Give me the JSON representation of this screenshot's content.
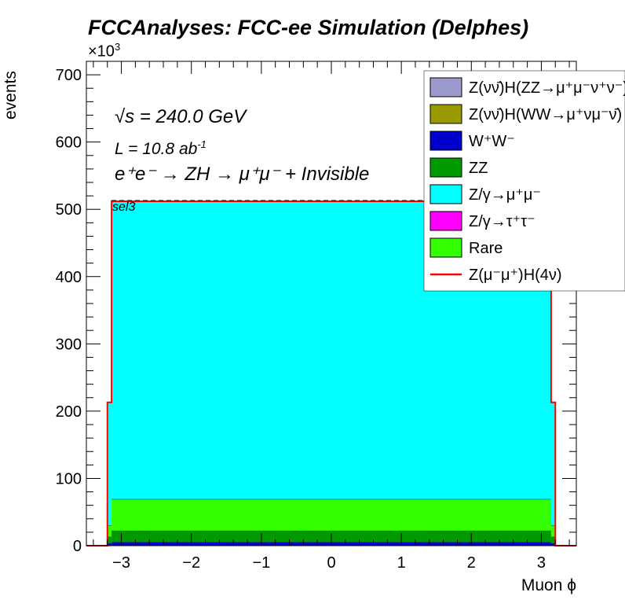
{
  "title": "FCCAnalyses: FCC-ee Simulation (Delphes)",
  "annotations": {
    "sqrt_s_symbol": "√s",
    "sqrt_s_value": "= 240.0 GeV",
    "lumi": "L = 10.8 ab",
    "lumi_exp": "-1",
    "process": "e⁺e⁻ → ZH → μ⁺μ⁻ + Invisible",
    "selection": "sel3",
    "exponent_label": "×10",
    "exponent_power": "3"
  },
  "colors": {
    "ZZ_nunu_H_mumununu": "#9999cc",
    "WW_nunu_H": "#999900",
    "WW": "#0000cc",
    "ZZ": "#009900",
    "Zgamma_mumu": "#00ffff",
    "Zgamma_tautau": "#ff00ff",
    "Rare": "#33ff00",
    "signal_line": "#ff0000"
  },
  "chart_data": {
    "type": "bar",
    "title": "FCCAnalyses: FCC-ee Simulation (Delphes)",
    "xlabel": "Muon ϕ",
    "ylabel": "events",
    "xlim": [
      -3.5,
      3.5
    ],
    "ylim": [
      0,
      720
    ],
    "y_unit": "×10^3",
    "stacked": true,
    "grid": false,
    "legend_position": "top-right",
    "xticks": [
      -3,
      -2,
      -1,
      0,
      1,
      2,
      3
    ],
    "yticks": [
      0,
      100,
      200,
      300,
      400,
      500,
      600,
      700
    ],
    "bins": [
      {
        "lo": -3.5,
        "hi": -3.2,
        "WW": 0,
        "ZZ": 0,
        "Rare": 0,
        "Zgamma_mumu": 0,
        "signal": 0
      },
      {
        "lo": -3.2,
        "hi": -3.14,
        "WW": 3,
        "ZZ": 10,
        "Rare": 17,
        "Zgamma_mumu": 183,
        "signal": 213
      },
      {
        "lo": -3.14,
        "hi": 3.14,
        "WW": 5,
        "ZZ": 17,
        "Rare": 47,
        "Zgamma_mumu": 443,
        "signal": 512
      },
      {
        "lo": 3.14,
        "hi": 3.2,
        "WW": 3,
        "ZZ": 10,
        "Rare": 17,
        "Zgamma_mumu": 183,
        "signal": 213
      },
      {
        "lo": 3.2,
        "hi": 3.5,
        "WW": 0,
        "ZZ": 0,
        "Rare": 0,
        "Zgamma_mumu": 0,
        "signal": 0
      }
    ],
    "legend": [
      {
        "label": "Z(νν̄)H(ZZ→μ⁺μ⁻ν⁺ν⁻)",
        "key": "ZZ_nunu_H_mumununu",
        "style": "fill"
      },
      {
        "label": "Z(νν̄)H(WW→μ⁺νμ⁻ν̄)",
        "key": "WW_nunu_H",
        "style": "fill"
      },
      {
        "label": "W⁺W⁻",
        "key": "WW",
        "style": "fill"
      },
      {
        "label": "ZZ",
        "key": "ZZ",
        "style": "fill"
      },
      {
        "label": "Z/γ→μ⁺μ⁻",
        "key": "Zgamma_mumu",
        "style": "fill"
      },
      {
        "label": "Z/γ→τ⁺τ⁻",
        "key": "Zgamma_tautau",
        "style": "fill"
      },
      {
        "label": "Rare",
        "key": "Rare",
        "style": "fill"
      },
      {
        "label": "Z(μ⁻μ⁺)H(4ν)",
        "key": "signal_line",
        "style": "line"
      }
    ]
  }
}
